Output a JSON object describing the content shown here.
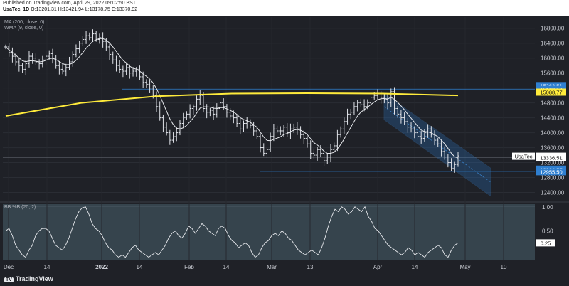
{
  "header": {
    "published": "Published on TradingView.com, April 29, 2022 09:02:50 BST",
    "symbol": "UsaTec, 1D",
    "ohlc": "O:13201.31 H:13421.94 L:13178.75 C:13370.92"
  },
  "footer": {
    "brand": "TradingView"
  },
  "chart_data": [
    {
      "type": "line",
      "panel": "price",
      "indicators": [
        "MA (200, close, 0)",
        "WMA (9, close, 0)"
      ],
      "x_tick_labels": [
        "Dec",
        "14",
        "2022",
        "14",
        "Feb",
        "14",
        "Mar",
        "13",
        "Apr",
        "14",
        "May",
        "10"
      ],
      "y_tick_labels": [
        "16800.00",
        "16400.00",
        "16000.00",
        "15600.00",
        "15200.00",
        "14800.00",
        "14400.00",
        "14000.00",
        "13600.00",
        "13200.00",
        "12800.00",
        "12400.00"
      ],
      "ylim": [
        12200,
        17100
      ],
      "price_labels": [
        {
          "text": "15263.51",
          "value": 15263.51,
          "style": "blue"
        },
        {
          "text": "15162.50",
          "value": 15162.5,
          "style": "blue"
        },
        {
          "text": "15088.77",
          "value": 15088.77,
          "style": "yellow"
        },
        {
          "text": "13370.92",
          "value": 13370.92,
          "style": "white",
          "tag": "UsaTec"
        },
        {
          "text": "13336.51",
          "value": 13336.51,
          "style": "white"
        },
        {
          "text": "13024.57",
          "value": 13024.57,
          "style": "blue"
        },
        {
          "text": "12955.50",
          "value": 12955.5,
          "style": "blue"
        }
      ],
      "series": [
        {
          "name": "UsaTec",
          "kind": "ohlc",
          "color": "#dfe2e8",
          "close": [
            16300,
            16150,
            16050,
            15900,
            15800,
            15700,
            15850,
            16050,
            16000,
            15900,
            15850,
            15950,
            16050,
            16120,
            16000,
            15800,
            15700,
            15650,
            15750,
            15900,
            16100,
            16250,
            16400,
            16500,
            16600,
            16550,
            16650,
            16500,
            16550,
            16450,
            16300,
            16100,
            15950,
            15800,
            15700,
            15650,
            15750,
            15600,
            15650,
            15700,
            15500,
            15350,
            15300,
            15200,
            15000,
            14700,
            14400,
            14150,
            14000,
            13800,
            13900,
            14000,
            14250,
            14400,
            14500,
            14650,
            14700,
            14900,
            15000,
            14650,
            14550,
            14600,
            14500,
            14650,
            14800,
            14700,
            14550,
            14450,
            14400,
            14250,
            14100,
            14250,
            14300,
            14200,
            14050,
            13900,
            13600,
            13450,
            13550,
            13900,
            14100,
            14050,
            14050,
            14150,
            14000,
            14100,
            14150,
            14100,
            13950,
            13850,
            13700,
            13450,
            13400,
            13550,
            13450,
            13250,
            13350,
            13550,
            13650,
            13950,
            14100,
            14300,
            14500,
            14550,
            14700,
            14800,
            14750,
            14700,
            14800,
            14950,
            15000,
            15050,
            14950,
            14900,
            14800,
            15100,
            14650,
            14500,
            14400,
            14300,
            14150,
            14100,
            14000,
            13900,
            13850,
            14000,
            14100,
            13950,
            13800,
            13700,
            13500,
            13350,
            13200,
            13050,
            13150,
            13380
          ],
          "trend_channel": [
            [
              "2022-04-04",
              15050
            ],
            [
              "2022-05-06",
              13050
            ],
            [
              "2022-04-04",
              14350
            ],
            [
              "2022-05-06",
              12300
            ]
          ]
        },
        {
          "name": "MA (200, close, 0)",
          "color": "#ffeb3b",
          "values": [
            14450,
            14800,
            14980,
            15050,
            15060,
            15050,
            15000
          ]
        },
        {
          "name": "WMA (9, close, 0)",
          "color": "#dfe2e8",
          "values": "follows price"
        }
      ]
    },
    {
      "type": "line",
      "panel": "oscillator",
      "indicators": [
        "BB %B (20, 2)"
      ],
      "y_tick_labels": [
        "1.00",
        "0.50",
        "0.25"
      ],
      "ylim": [
        -0.1,
        1.1
      ],
      "series": [
        {
          "name": "BB %B (20, 2)",
          "color": "#dfe2e8",
          "values": [
            0.5,
            0.55,
            0.4,
            0.2,
            0.1,
            0.0,
            -0.05,
            0.1,
            0.2,
            0.4,
            0.5,
            0.55,
            0.55,
            0.5,
            0.35,
            0.2,
            0.15,
            0.1,
            0.2,
            0.35,
            0.55,
            0.75,
            0.9,
            0.98,
            1.0,
            0.85,
            0.65,
            0.55,
            0.5,
            0.4,
            0.25,
            0.15,
            0.1,
            0.0,
            -0.05,
            0.0,
            -0.05,
            0.05,
            0.15,
            0.2,
            0.1,
            0.05,
            0.0,
            -0.05,
            0.0,
            0.05,
            0.0,
            0.1,
            0.2,
            0.35,
            0.45,
            0.5,
            0.4,
            0.35,
            0.45,
            0.6,
            0.55,
            0.45,
            0.55,
            0.65,
            0.6,
            0.5,
            0.45,
            0.4,
            0.55,
            0.6,
            0.55,
            0.4,
            0.3,
            0.25,
            0.15,
            0.2,
            0.25,
            0.2,
            0.05,
            -0.05,
            0.0,
            0.15,
            0.25,
            0.3,
            0.4,
            0.45,
            0.4,
            0.5,
            0.45,
            0.35,
            0.3,
            0.2,
            0.1,
            0.05,
            0.0,
            0.05,
            0.1,
            0.05,
            0.0,
            0.15,
            0.35,
            0.6,
            0.8,
            0.95,
            0.9,
            1.0,
            0.95,
            0.85,
            0.9,
            1.0,
            0.95,
            0.9,
            1.0,
            0.8,
            0.7,
            0.55,
            0.5,
            0.4,
            0.3,
            0.2,
            0.15,
            0.1,
            0.05,
            0.0,
            0.05,
            0.15,
            0.1,
            0.0,
            0.05,
            0.0,
            -0.05,
            0.05,
            0.1,
            0.15,
            0.2,
            0.15,
            0.0,
            -0.05,
            0.1,
            0.2,
            0.25
          ]
        }
      ]
    }
  ]
}
